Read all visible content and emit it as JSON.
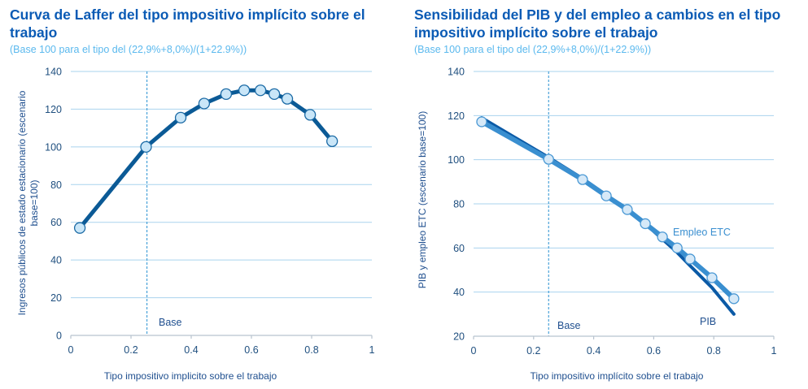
{
  "chart_data": [
    {
      "type": "line",
      "title": "Curva de Laffer del tipo impositivo implícito sobre el trabajo",
      "subtitle": "(Base 100 para el tipo del (22,9%+8,0%)/(1+22.9%))",
      "xlabel": "Tipo impositivo implicito sobre el trabajo",
      "ylabel": "Ingresos públicos de estado estacionario (escenario base=100)",
      "ylabel_lines": [
        "Ingresos públicos de estado estacionario (escenario",
        "base=100)"
      ],
      "xlim": [
        0,
        1
      ],
      "ylim": [
        0,
        140
      ],
      "xticks": [
        0,
        0.2,
        0.4,
        0.6,
        0.8,
        1
      ],
      "xtick_labels": [
        "0",
        "0.2",
        "0.4",
        "0.6",
        "0.8",
        "1"
      ],
      "yticks": [
        0,
        20,
        40,
        60,
        80,
        100,
        120,
        140
      ],
      "ytick_labels": [
        "0",
        "20",
        "40",
        "60",
        "80",
        "100",
        "120",
        "140"
      ],
      "grid": "horizontal",
      "base_line": {
        "x": 0.253,
        "label": "Base"
      },
      "series": [
        {
          "name": "Ingresos públicos",
          "color": "#0b5a96",
          "marker_fill": "#c9e6f8",
          "x": [
            0.03,
            0.25,
            0.365,
            0.443,
            0.516,
            0.576,
            0.63,
            0.676,
            0.719,
            0.795,
            0.868
          ],
          "y": [
            57,
            100,
            115.5,
            123,
            128,
            130,
            130,
            128,
            125.5,
            117,
            103
          ]
        }
      ]
    },
    {
      "type": "line",
      "title": "Sensibilidad del PIB y del empleo a cambios en el tipo impositivo implícito sobre el trabajo",
      "subtitle": "(Base 100 para el tipo del (22,9%+8,0%)/(1+22.9%))",
      "xlabel": "Tipo impositivo implícito sobre el trabajo",
      "ylabel": "PIB y empleo ETC (escenario base=100)",
      "xlim": [
        0,
        1
      ],
      "ylim": [
        20,
        140
      ],
      "xticks": [
        0,
        0.2,
        0.4,
        0.6,
        0.8,
        1
      ],
      "xtick_labels": [
        "0",
        "0.2",
        "0.4",
        "0.6",
        "0.8",
        "1"
      ],
      "yticks": [
        20,
        40,
        60,
        80,
        100,
        120,
        140
      ],
      "ytick_labels": [
        "20",
        "40",
        "60",
        "80",
        "100",
        "120",
        "140"
      ],
      "grid": "horizontal",
      "base_line": {
        "x": 0.25,
        "label": "Base"
      },
      "series": [
        {
          "name": "PIB",
          "label": "PIB",
          "color": "#0b5aa6",
          "markers": false,
          "x": [
            0.027,
            0.25,
            0.363,
            0.442,
            0.512,
            0.572,
            0.629,
            0.678,
            0.721,
            0.794,
            0.867
          ],
          "y": [
            119,
            101,
            91.5,
            84,
            77.5,
            71,
            64,
            58,
            52,
            42,
            30
          ]
        },
        {
          "name": "Empleo ETC",
          "label": "Empleo ETC",
          "color": "#3a8fd0",
          "marker_fill": "#d6e9f8",
          "x": [
            0.027,
            0.25,
            0.363,
            0.442,
            0.512,
            0.572,
            0.629,
            0.678,
            0.721,
            0.794,
            0.867
          ],
          "y": [
            117.2,
            100.2,
            91,
            83.6,
            77.4,
            71,
            65,
            60,
            55,
            46.5,
            37
          ]
        }
      ]
    }
  ]
}
